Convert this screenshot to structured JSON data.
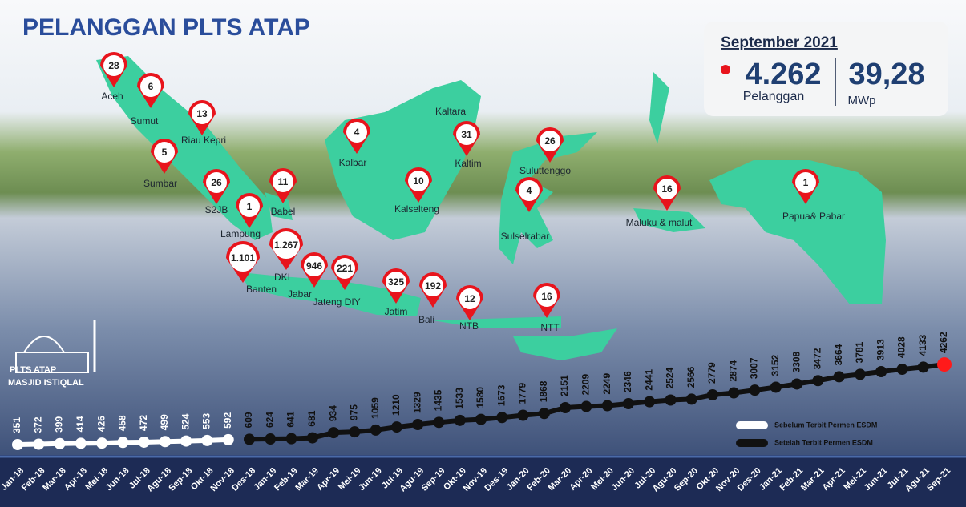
{
  "title": "PELANGGAN PLTS ATAP",
  "summary": {
    "period": "September 2021",
    "customers": "4.262",
    "customers_label": "Pelanggan",
    "capacity": "39,28",
    "capacity_unit": "MWp"
  },
  "logo": {
    "line1": "PLTS ATAP",
    "line2": "MASJID ISTIQLAL"
  },
  "map": {
    "regions": [
      {
        "name": "Aceh",
        "value": 28
      },
      {
        "name": "Sumut",
        "value": 6
      },
      {
        "name": "Riau Kepri",
        "value": 13
      },
      {
        "name": "Sumbar",
        "value": 5
      },
      {
        "name": "S2JB",
        "value": 26
      },
      {
        "name": "Babel",
        "value": 11
      },
      {
        "name": "Lampung",
        "value": 1
      },
      {
        "name": "Banten",
        "value": 1101,
        "value_label": "1.101"
      },
      {
        "name": "DKI",
        "value": 1267,
        "value_label": "1.267"
      },
      {
        "name": "Jabar",
        "value": 946
      },
      {
        "name": "Jateng DIY",
        "value": 221
      },
      {
        "name": "Jatim",
        "value": 325
      },
      {
        "name": "Bali",
        "value": 192
      },
      {
        "name": "NTB",
        "value": 12
      },
      {
        "name": "NTT",
        "value": 16
      },
      {
        "name": "Kalbar",
        "value": 4
      },
      {
        "name": "Kalselteng",
        "value": 10
      },
      {
        "name": "Kaltara"
      },
      {
        "name": "Kaltim",
        "value": 31
      },
      {
        "name": "Suluttenggo",
        "value": 26
      },
      {
        "name": "Sulselrabar",
        "value": 4
      },
      {
        "name": "Maluku & malut",
        "value": 16
      },
      {
        "name": "Papua& Pabar",
        "value": 1
      }
    ],
    "pin_color": "#e8141c",
    "land_color": "#3ccf9f"
  },
  "chart_data": {
    "type": "line",
    "categories": [
      "Jan-18",
      "Feb-18",
      "Mar-18",
      "Apr-18",
      "Mei-18",
      "Jun-18",
      "Jul-18",
      "Agu-18",
      "Sep-18",
      "Okt-18",
      "Nov-18",
      "Des-18",
      "Jan-19",
      "Feb-19",
      "Mar-19",
      "Apr-19",
      "Mei-19",
      "Jun-19",
      "Jul-19",
      "Agu-19",
      "Sep-19",
      "Okt-19",
      "Nov-19",
      "Des-19",
      "Jan-20",
      "Feb-20",
      "Mar-20",
      "Apr-20",
      "Mei-20",
      "Jun-20",
      "Jul-20",
      "Agu-20",
      "Sep-20",
      "Okt-20",
      "Nov-20",
      "Des-20",
      "Jan-21",
      "Feb-21",
      "Mar-21",
      "Apr-21",
      "Mei-21",
      "Jun-21",
      "Jul-21",
      "Agu-21",
      "Sep-21"
    ],
    "series": [
      {
        "name": "Sebelum Terbit Permen ESDM",
        "color": "#ffffff",
        "values": [
          351,
          372,
          399,
          414,
          426,
          458,
          472,
          499,
          524,
          553,
          592,
          null,
          null,
          null,
          null,
          null,
          null,
          null,
          null,
          null,
          null,
          null,
          null,
          null,
          null,
          null,
          null,
          null,
          null,
          null,
          null,
          null,
          null,
          null,
          null,
          null,
          null,
          null,
          null,
          null,
          null,
          null,
          null,
          null,
          null
        ]
      },
      {
        "name": "Setelah Terbit Permen ESDM",
        "color": "#111111",
        "last_color": "#ff1a1a",
        "values": [
          null,
          null,
          null,
          null,
          null,
          null,
          null,
          null,
          null,
          null,
          null,
          609,
          624,
          641,
          681,
          934,
          975,
          1059,
          1210,
          1329,
          1435,
          1533,
          1580,
          1673,
          1779,
          1868,
          2151,
          2209,
          2249,
          2346,
          2441,
          2524,
          2566,
          2779,
          2874,
          3007,
          3152,
          3308,
          3472,
          3664,
          3781,
          3913,
          4028,
          4133,
          4262
        ]
      }
    ],
    "ylim": [
      0,
      4500
    ]
  }
}
